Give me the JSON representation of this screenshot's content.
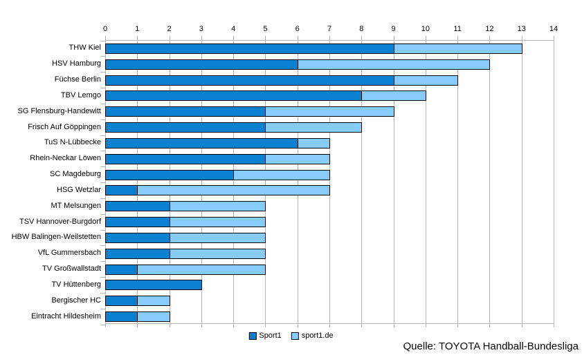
{
  "source": {
    "text": "Quelle: TOYOTA Handball-Bundesliga"
  },
  "colors": {
    "sport1": "#0a80d0",
    "sport1de": "#87cbf9",
    "grid": "#b2b2b2",
    "bar_border": "#000000",
    "text": "#000000",
    "background": "#ffffff"
  },
  "legend": {
    "items": [
      {
        "label": "Sport1",
        "swatch": "sport1-swatch"
      },
      {
        "label": "sport1.de",
        "swatch": "sport1de-swatch"
      }
    ]
  },
  "chart_data": {
    "type": "bar",
    "orientation": "horizontal",
    "stacked": true,
    "title": "",
    "xlabel": "",
    "ylabel": "",
    "xlim": [
      0,
      14
    ],
    "xticks": [
      0,
      1,
      2,
      3,
      4,
      5,
      6,
      7,
      8,
      9,
      10,
      11,
      12,
      13,
      14
    ],
    "grid": true,
    "legend_position": "bottom-center",
    "axis_position": "top",
    "categories": [
      "THW Kiel",
      "HSV Hamburg",
      "Füchse Berlin",
      "TBV Lemgo",
      "SG Flensburg-Handewitt",
      "Frisch Auf Göppingen",
      "TuS N-Lübbecke",
      "Rhein-Neckar Löwen",
      "SC Magdeburg",
      "HSG Wetzlar",
      "MT Melsungen",
      "TSV Hannover-Burgdorf",
      "HBW Balingen-Weilstetten",
      "VfL Gummersbach",
      "TV Großwallstadt",
      "TV Hüttenberg",
      "Bergischer HC",
      "Eintracht Hildesheim"
    ],
    "series": [
      {
        "name": "Sport1",
        "color": "#0a80d0",
        "values": [
          9,
          6,
          9,
          8,
          5,
          5,
          6,
          5,
          4,
          1,
          2,
          2,
          2,
          2,
          1,
          3,
          1,
          1
        ]
      },
      {
        "name": "sport1.de",
        "color": "#87cbf9",
        "values": [
          4,
          6,
          2,
          2,
          4,
          3,
          1,
          2,
          3,
          6,
          3,
          3,
          3,
          3,
          4,
          0,
          1,
          1
        ]
      }
    ],
    "totals": [
      13,
      12,
      11,
      10,
      9,
      8,
      7,
      7,
      7,
      7,
      5,
      5,
      5,
      5,
      5,
      3,
      2,
      2
    ]
  }
}
